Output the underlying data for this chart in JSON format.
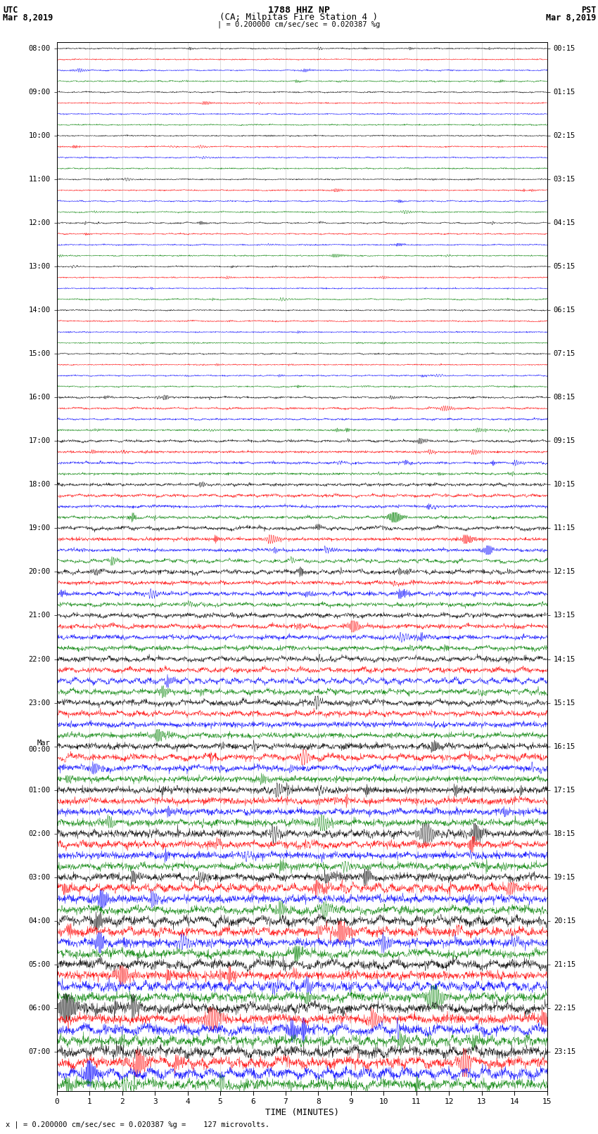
{
  "title_line1": "1788 HHZ NP",
  "title_line2": "(CA; Milpitas Fire Station 4 )",
  "left_header_line1": "UTC",
  "left_header_line2": "Mar 8,2019",
  "right_header_line1": "PST",
  "right_header_line2": "Mar 8,2019",
  "scale_text": "| = 0.200000 cm/sec/sec = 0.020387 %g",
  "bottom_note": "x | = 0.200000 cm/sec/sec = 0.020387 %g =    127 microvolts.",
  "xlabel": "TIME (MINUTES)",
  "utc_times_labeled": [
    "08:00",
    "09:00",
    "10:00",
    "11:00",
    "12:00",
    "13:00",
    "14:00",
    "15:00",
    "16:00",
    "17:00",
    "18:00",
    "19:00",
    "20:00",
    "21:00",
    "22:00",
    "23:00",
    "Mar\n00:00",
    "01:00",
    "02:00",
    "03:00",
    "04:00",
    "05:00",
    "06:00",
    "07:00"
  ],
  "pst_times_labeled": [
    "00:15",
    "01:15",
    "02:15",
    "03:15",
    "04:15",
    "05:15",
    "06:15",
    "07:15",
    "08:15",
    "09:15",
    "10:15",
    "11:15",
    "12:15",
    "13:15",
    "14:15",
    "15:15",
    "16:15",
    "17:15",
    "18:15",
    "19:15",
    "20:15",
    "21:15",
    "22:15",
    "23:15"
  ],
  "colors": [
    "black",
    "red",
    "blue",
    "green"
  ],
  "n_hours": 24,
  "traces_per_hour": 4,
  "n_points": 1800,
  "x_min": 0,
  "x_max": 15,
  "background_color": "white",
  "grid_color": "#aaaaaa",
  "seed": 42
}
